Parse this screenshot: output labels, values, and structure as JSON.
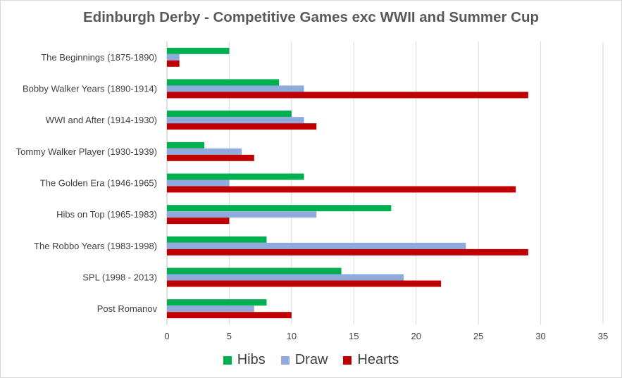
{
  "chart_data": {
    "type": "bar",
    "orientation": "horizontal",
    "title": "Edinburgh Derby - Competitive Games exc WWII and Summer Cup",
    "categories": [
      "The Beginnings (1875-1890)",
      "Bobby Walker Years (1890-1914)",
      "WWI and After (1914-1930)",
      "Tommy Walker Player (1930-1939)",
      "The Golden Era (1946-1965)",
      "Hibs on Top (1965-1983)",
      "The Robbo Years (1983-1998)",
      "SPL (1998 - 2013)",
      "Post Romanov"
    ],
    "series": [
      {
        "name": "Hibs",
        "color": "#00b050",
        "values": [
          5,
          9,
          10,
          3,
          11,
          18,
          8,
          14,
          8
        ]
      },
      {
        "name": "Draw",
        "color": "#8faadc",
        "values": [
          1,
          11,
          11,
          6,
          5,
          12,
          24,
          19,
          7
        ]
      },
      {
        "name": "Hearts",
        "color": "#c00000",
        "values": [
          1,
          29,
          12,
          7,
          28,
          5,
          29,
          22,
          10
        ]
      }
    ],
    "xlim": [
      0,
      35
    ],
    "xticks": [
      0,
      5,
      10,
      15,
      20,
      25,
      30,
      35
    ],
    "xlabel": "",
    "ylabel": "",
    "grid": true,
    "legend_position": "bottom"
  }
}
